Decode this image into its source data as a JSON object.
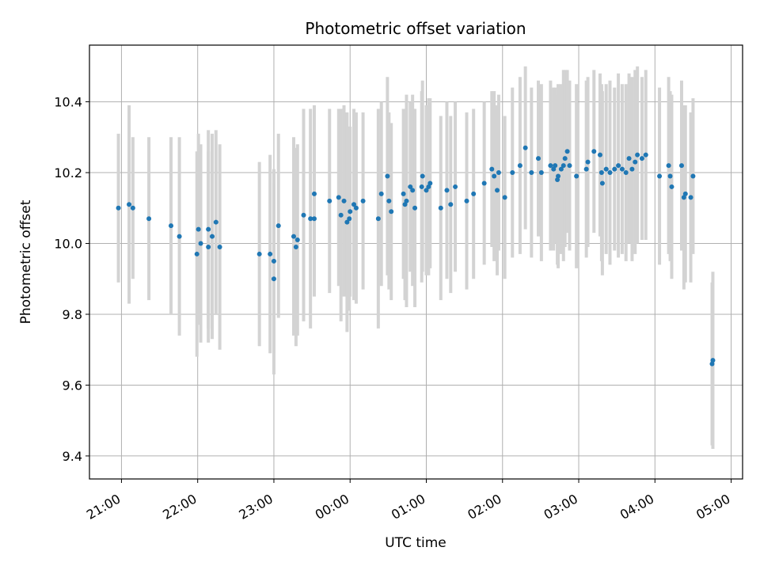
{
  "chart_data": {
    "type": "scatter",
    "title": "Photometric offset variation",
    "xlabel": "UTC time",
    "ylabel": "Photometric offset",
    "x_unit": "hours (UTC, continuing past midnight)",
    "xlim": [
      20.58,
      29.15
    ],
    "ylim": [
      9.335,
      10.56
    ],
    "grid": true,
    "x_ticks": [
      {
        "value": 21,
        "label": "21:00"
      },
      {
        "value": 22,
        "label": "22:00"
      },
      {
        "value": 23,
        "label": "23:00"
      },
      {
        "value": 24,
        "label": "00:00"
      },
      {
        "value": 25,
        "label": "01:00"
      },
      {
        "value": 26,
        "label": "02:00"
      },
      {
        "value": 27,
        "label": "03:00"
      },
      {
        "value": 28,
        "label": "04:00"
      },
      {
        "value": 29,
        "label": "05:00"
      }
    ],
    "y_ticks": [
      {
        "value": 9.4,
        "label": "9.4"
      },
      {
        "value": 9.6,
        "label": "9.6"
      },
      {
        "value": 9.8,
        "label": "9.8"
      },
      {
        "value": 10.0,
        "label": "10.0"
      },
      {
        "value": 10.2,
        "label": "10.2"
      },
      {
        "value": 10.4,
        "label": "10.4"
      }
    ],
    "colors": {
      "points": "#1f77b4",
      "errorbars": "#d3d3d3",
      "grid": "#b0b0b0",
      "axes": "#000000"
    },
    "series": [
      {
        "points": [
          [
            20.96,
            10.1,
            0.21
          ],
          [
            21.1,
            10.11,
            0.28
          ],
          [
            21.15,
            10.1,
            0.2
          ],
          [
            21.36,
            10.07,
            0.23
          ],
          [
            21.65,
            10.05,
            0.25
          ],
          [
            21.76,
            10.02,
            0.28
          ],
          [
            21.99,
            9.97,
            0.29
          ],
          [
            22.01,
            10.04,
            0.27
          ],
          [
            22.04,
            10.0,
            0.28
          ],
          [
            22.14,
            10.04,
            0.28
          ],
          [
            22.14,
            9.99,
            0.27
          ],
          [
            22.19,
            10.02,
            0.29
          ],
          [
            22.24,
            10.06,
            0.26
          ],
          [
            22.29,
            9.99,
            0.29
          ],
          [
            22.81,
            9.97,
            0.26
          ],
          [
            22.95,
            9.97,
            0.28
          ],
          [
            23.0,
            9.9,
            0.27
          ],
          [
            23.0,
            9.95,
            0.26
          ],
          [
            23.06,
            10.05,
            0.26
          ],
          [
            23.26,
            10.02,
            0.28
          ],
          [
            23.29,
            9.99,
            0.28
          ],
          [
            23.31,
            10.01,
            0.27
          ],
          [
            23.39,
            10.08,
            0.3
          ],
          [
            23.48,
            10.07,
            0.31
          ],
          [
            23.53,
            10.07,
            0.22
          ],
          [
            23.53,
            10.14,
            0.25
          ],
          [
            23.73,
            10.12,
            0.26
          ],
          [
            23.85,
            10.13,
            0.25
          ],
          [
            23.88,
            10.08,
            0.3
          ],
          [
            23.92,
            10.12,
            0.27
          ],
          [
            23.96,
            10.06,
            0.31
          ],
          [
            23.99,
            10.07,
            0.26
          ],
          [
            24.0,
            10.09,
            0.24
          ],
          [
            24.05,
            10.11,
            0.27
          ],
          [
            24.08,
            10.1,
            0.27
          ],
          [
            24.17,
            10.12,
            0.25
          ],
          [
            24.37,
            10.07,
            0.31
          ],
          [
            24.41,
            10.14,
            0.26
          ],
          [
            24.49,
            10.19,
            0.28
          ],
          [
            24.51,
            10.12,
            0.25
          ],
          [
            24.54,
            10.09,
            0.25
          ],
          [
            24.7,
            10.14,
            0.24
          ],
          [
            24.72,
            10.11,
            0.27
          ],
          [
            24.74,
            10.12,
            0.3
          ],
          [
            24.79,
            10.16,
            0.24
          ],
          [
            24.82,
            10.15,
            0.27
          ],
          [
            24.85,
            10.1,
            0.28
          ],
          [
            24.94,
            10.16,
            0.27
          ],
          [
            24.95,
            10.19,
            0.27
          ],
          [
            25.0,
            10.15,
            0.24
          ],
          [
            25.03,
            10.16,
            0.25
          ],
          [
            25.05,
            10.17,
            0.24
          ],
          [
            25.19,
            10.1,
            0.26
          ],
          [
            25.27,
            10.15,
            0.25
          ],
          [
            25.32,
            10.11,
            0.25
          ],
          [
            25.38,
            10.16,
            0.24
          ],
          [
            25.53,
            10.12,
            0.25
          ],
          [
            25.62,
            10.14,
            0.24
          ],
          [
            25.76,
            10.17,
            0.23
          ],
          [
            25.86,
            10.21,
            0.22
          ],
          [
            25.89,
            10.19,
            0.24
          ],
          [
            25.93,
            10.15,
            0.24
          ],
          [
            25.95,
            10.2,
            0.22
          ],
          [
            26.03,
            10.13,
            0.23
          ],
          [
            26.13,
            10.2,
            0.24
          ],
          [
            26.23,
            10.22,
            0.25
          ],
          [
            26.3,
            10.27,
            0.23
          ],
          [
            26.38,
            10.2,
            0.24
          ],
          [
            26.47,
            10.24,
            0.22
          ],
          [
            26.51,
            10.2,
            0.25
          ],
          [
            26.63,
            10.22,
            0.24
          ],
          [
            26.67,
            10.21,
            0.23
          ],
          [
            26.69,
            10.22,
            0.22
          ],
          [
            26.72,
            10.18,
            0.24
          ],
          [
            26.73,
            10.19,
            0.26
          ],
          [
            26.77,
            10.21,
            0.24
          ],
          [
            26.8,
            10.22,
            0.27
          ],
          [
            26.82,
            10.24,
            0.25
          ],
          [
            26.85,
            10.26,
            0.23
          ],
          [
            26.88,
            10.22,
            0.24
          ],
          [
            26.97,
            10.19,
            0.26
          ],
          [
            27.1,
            10.21,
            0.25
          ],
          [
            27.12,
            10.23,
            0.24
          ],
          [
            27.2,
            10.26,
            0.23
          ],
          [
            27.28,
            10.25,
            0.23
          ],
          [
            27.3,
            10.2,
            0.25
          ],
          [
            27.31,
            10.17,
            0.26
          ],
          [
            27.36,
            10.21,
            0.24
          ],
          [
            27.41,
            10.2,
            0.26
          ],
          [
            27.47,
            10.21,
            0.23
          ],
          [
            27.52,
            10.22,
            0.26
          ],
          [
            27.57,
            10.21,
            0.24
          ],
          [
            27.62,
            10.2,
            0.25
          ],
          [
            27.66,
            10.24,
            0.24
          ],
          [
            27.7,
            10.21,
            0.26
          ],
          [
            27.74,
            10.23,
            0.26
          ],
          [
            27.77,
            10.25,
            0.25
          ],
          [
            27.83,
            10.24,
            0.23
          ],
          [
            27.88,
            10.25,
            0.24
          ],
          [
            28.06,
            10.19,
            0.25
          ],
          [
            28.18,
            10.22,
            0.25
          ],
          [
            28.2,
            10.19,
            0.24
          ],
          [
            28.22,
            10.16,
            0.26
          ],
          [
            28.35,
            10.22,
            0.24
          ],
          [
            28.38,
            10.13,
            0.26
          ],
          [
            28.4,
            10.14,
            0.25
          ],
          [
            28.47,
            10.13,
            0.24
          ],
          [
            28.5,
            10.19,
            0.22
          ],
          [
            28.75,
            9.66,
            0.23
          ],
          [
            28.76,
            9.67,
            0.25
          ]
        ]
      }
    ]
  }
}
